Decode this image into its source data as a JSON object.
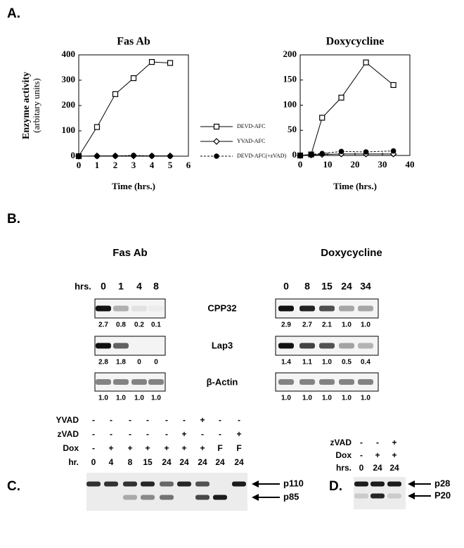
{
  "panel_labels": [
    "A.",
    "B.",
    "C.",
    "D."
  ],
  "chart_data": [
    {
      "type": "line",
      "title": "Fas Ab",
      "xlabel": "Time (hrs.)",
      "ylabel": [
        "Enzyme activity",
        "(arbitary units)"
      ],
      "x": [
        0,
        1,
        2,
        3,
        4,
        5
      ],
      "series": [
        {
          "name": "DEVD-AFC",
          "color": "#000000",
          "marker": "square",
          "dashed": false,
          "values": [
            0,
            115,
            245,
            308,
            372,
            368
          ]
        },
        {
          "name": "YVAD-AFC",
          "color": "#000000",
          "marker": "diamond",
          "dashed": false,
          "values": [
            0,
            1,
            1,
            1,
            1,
            1
          ]
        },
        {
          "name": "DEVD-AFC(+zVAD)",
          "color": "#000000",
          "marker": "dot",
          "dashed": true,
          "values": [
            0,
            0,
            1,
            3,
            1,
            0
          ]
        }
      ],
      "xlim": [
        0,
        6
      ],
      "xticks": [
        0,
        1,
        2,
        3,
        4,
        5,
        6
      ],
      "ylim": [
        0,
        400
      ],
      "yticks": [
        0,
        100,
        200,
        300,
        400
      ]
    },
    {
      "type": "line",
      "title": "Doxycycline",
      "xlabel": "Time (hrs.)",
      "x": [
        0,
        4,
        8,
        15,
        24,
        34
      ],
      "series": [
        {
          "color": "#000000",
          "marker": "square",
          "dashed": false,
          "values": [
            0,
            2,
            75,
            115,
            185,
            140
          ]
        },
        {
          "color": "#000000",
          "marker": "diamond",
          "dashed": false,
          "values": [
            0,
            1,
            2,
            3,
            3,
            3
          ]
        },
        {
          "color": "#000000",
          "marker": "dot",
          "dashed": true,
          "values": [
            0,
            2,
            4,
            8,
            7,
            9
          ]
        }
      ],
      "xlim": [
        0,
        40
      ],
      "xticks": [
        0,
        10,
        20,
        30,
        40
      ],
      "ylim": [
        0,
        200
      ],
      "yticks": [
        0,
        50,
        100,
        150,
        200
      ]
    }
  ],
  "panel_b": {
    "row_labels": [
      "CPP32",
      "Lap3",
      "β-Actin"
    ],
    "blots": [
      {
        "title": "Fas Ab",
        "lanes_label": "hrs.",
        "lanes": [
          "0",
          "1",
          "4",
          "8"
        ],
        "rows": [
          [
            "2.7",
            "0.8",
            "0.2",
            "0.1"
          ],
          [
            "2.8",
            "1.8",
            "0",
            "0"
          ],
          [
            "1.0",
            "1.0",
            "1.0",
            "1.0"
          ]
        ]
      },
      {
        "title": "Doxycycline",
        "lanes": [
          "0",
          "8",
          "15",
          "24",
          "34"
        ],
        "rows": [
          [
            "2.9",
            "2.7",
            "2.1",
            "1.0",
            "1.0"
          ],
          [
            "1.4",
            "1.1",
            "1.0",
            "0.5",
            "0.4"
          ],
          [
            "1.0",
            "1.0",
            "1.0",
            "1.0",
            "1.0"
          ]
        ]
      }
    ]
  },
  "panel_c": {
    "rows": [
      {
        "label": "YVAD",
        "cells": [
          "-",
          "-",
          "-",
          "-",
          "-",
          "-",
          "+",
          "-",
          "-"
        ]
      },
      {
        "label": "zVAD",
        "cells": [
          "-",
          "-",
          "-",
          "-",
          "-",
          "+",
          "-",
          "-",
          "+"
        ]
      },
      {
        "label": "Dox",
        "cells": [
          "-",
          "+",
          "+",
          "+",
          "+",
          "+",
          "+",
          "F",
          "F"
        ]
      },
      {
        "label": "hr.",
        "cells": [
          "0",
          "4",
          "8",
          "15",
          "24",
          "24",
          "24",
          "24",
          "24"
        ]
      }
    ],
    "markers": [
      "p110",
      "p85"
    ]
  },
  "panel_d": {
    "rows": [
      {
        "label": "zVAD",
        "cells": [
          "-",
          "-",
          "+"
        ]
      },
      {
        "label": "Dox",
        "cells": [
          "-",
          "+",
          "+"
        ]
      },
      {
        "label": "hrs.",
        "cells": [
          "0",
          "24",
          "24"
        ]
      }
    ],
    "markers": [
      "p28",
      "P20"
    ]
  }
}
